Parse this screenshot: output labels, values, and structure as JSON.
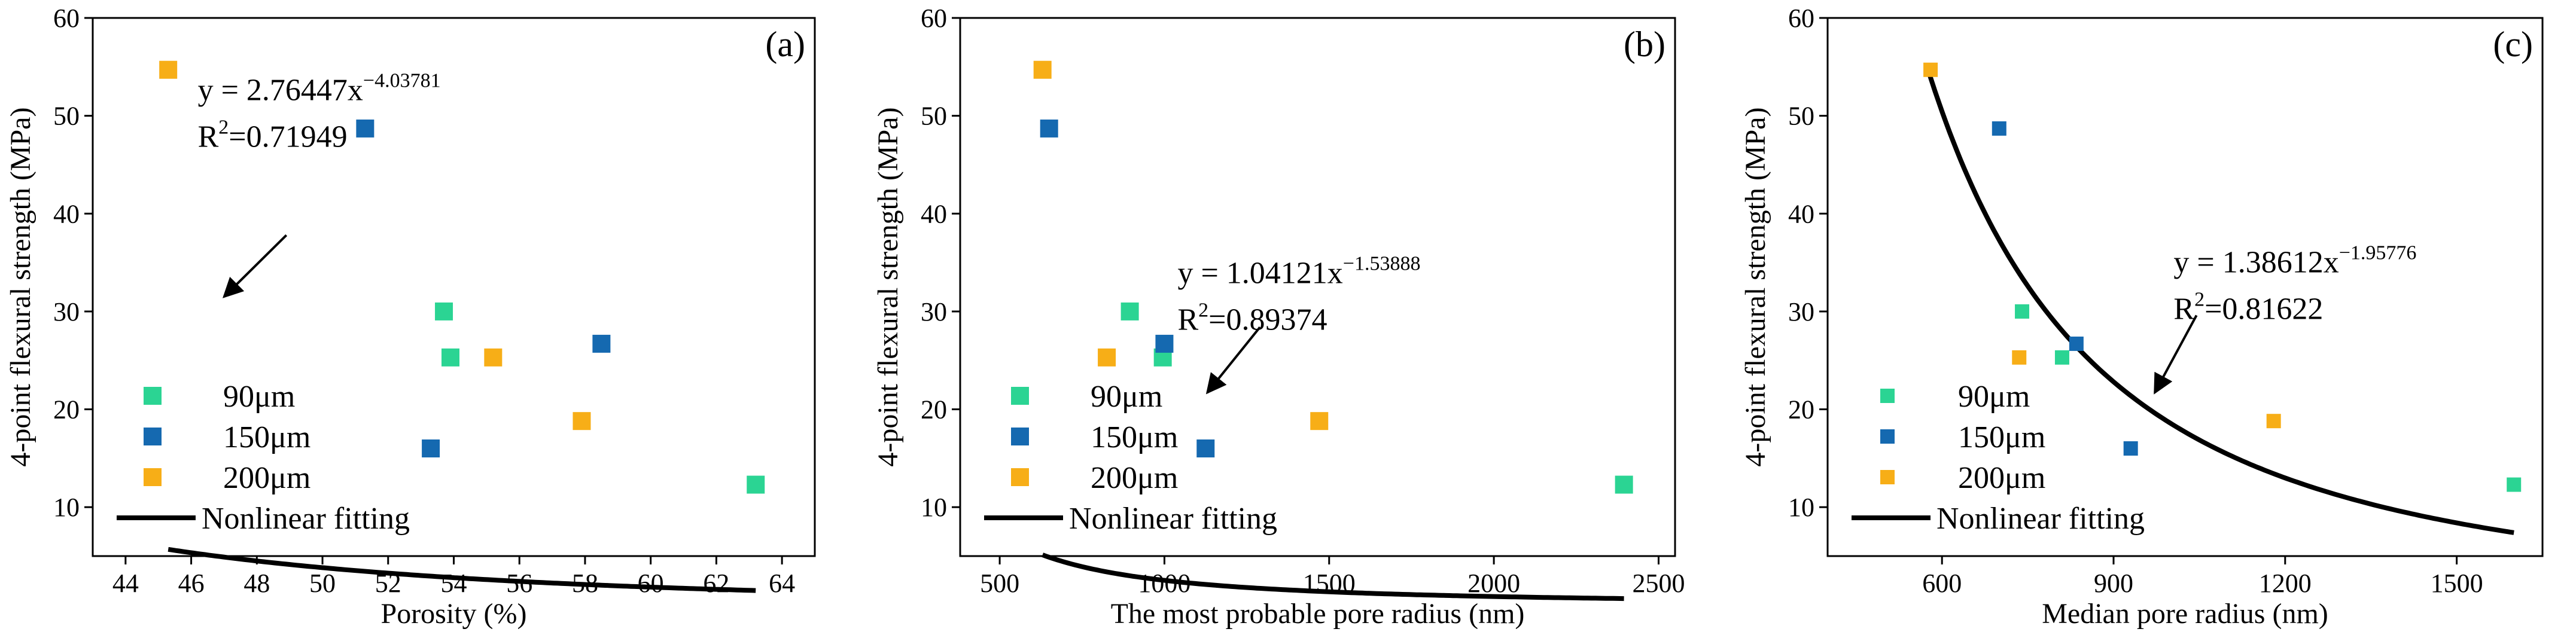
{
  "colors": {
    "s90": "#2bd493",
    "s150": "#1569b0",
    "s200": "#f7ae17",
    "fit": "#000000",
    "axis": "#000000"
  },
  "chart_data": [
    {
      "type": "scatter",
      "panel_label": "(a)",
      "xlabel": "Porosity (%)",
      "ylabel": "4-point flexural strength (MPa)",
      "xlim": [
        43,
        65
      ],
      "ylim": [
        5,
        60
      ],
      "xticks": [
        44,
        46,
        48,
        50,
        52,
        54,
        56,
        58,
        60,
        62,
        64
      ],
      "yticks": [
        10,
        20,
        30,
        40,
        50,
        60
      ],
      "series": [
        {
          "name": "90μm",
          "color_key": "s90",
          "marker_scale": 1.0,
          "points": [
            [
              53.7,
              30.0
            ],
            [
              53.9,
              25.3
            ],
            [
              63.2,
              12.3
            ]
          ]
        },
        {
          "name": "150μm",
          "color_key": "s150",
          "marker_scale": 1.0,
          "points": [
            [
              51.3,
              48.7
            ],
            [
              58.5,
              26.7
            ],
            [
              53.3,
              16.0
            ]
          ]
        },
        {
          "name": "200μm",
          "color_key": "s200",
          "marker_scale": 1.0,
          "points": [
            [
              45.3,
              54.7
            ],
            [
              55.2,
              25.3
            ],
            [
              57.9,
              18.8
            ]
          ]
        }
      ],
      "fit": {
        "name": "Nonlinear fitting",
        "a": 27644700.0,
        "b": -4.03781,
        "x_range": [
          45.3,
          63.2
        ]
      },
      "equation": {
        "prefix": "y = 2.76447x",
        "exponent": "−4.03781",
        "r2_prefix": "R",
        "r2_exp": "2",
        "r2_value": "=0.71949"
      },
      "annotation": {
        "text_pos": [
          46.2,
          51.6
        ],
        "arrow_from": [
          48.9,
          37.8
        ],
        "arrow_to": [
          47.0,
          31.5
        ]
      },
      "legend_position": "bottom-left"
    },
    {
      "type": "scatter",
      "panel_label": "(b)",
      "xlabel": "The most probable pore radius (nm)",
      "ylabel": "4-point flexural strength (MPa)",
      "xlim": [
        380,
        2550
      ],
      "ylim": [
        5,
        60
      ],
      "xticks": [
        500,
        1000,
        1500,
        2000,
        2500
      ],
      "yticks": [
        10,
        20,
        30,
        40,
        50,
        60
      ],
      "series": [
        {
          "name": "90μm",
          "color_key": "s90",
          "marker_scale": 1.0,
          "points": [
            [
              895,
              30.0
            ],
            [
              995,
              25.3
            ],
            [
              2395,
              12.3
            ]
          ]
        },
        {
          "name": "150μm",
          "color_key": "s150",
          "marker_scale": 1.0,
          "points": [
            [
              650,
              48.7
            ],
            [
              1000,
              26.7
            ],
            [
              1125,
              16.0
            ]
          ]
        },
        {
          "name": "200μm",
          "color_key": "s200",
          "marker_scale": 1.0,
          "points": [
            [
              630,
              54.7
            ],
            [
              825,
              25.3
            ],
            [
              1470,
              18.8
            ]
          ]
        }
      ],
      "fit": {
        "name": "Nonlinear fitting",
        "a": 104121.0,
        "b": -1.53888,
        "x_range": [
          630,
          2395
        ]
      },
      "equation": {
        "prefix": "y = 1.04121x",
        "exponent": "−1.53888",
        "r2_prefix": "R",
        "r2_exp": "2",
        "r2_value": "=0.89374"
      },
      "annotation": {
        "text_pos": [
          1040,
          32.9
        ],
        "arrow_from": [
          1290,
          28.4
        ],
        "arrow_to": [
          1130,
          21.7
        ]
      },
      "legend_position": "bottom-left"
    },
    {
      "type": "scatter",
      "panel_label": "(c)",
      "xlabel": "Median pore radius (nm)",
      "ylabel": "4-point flexural strength (MPa)",
      "xlim": [
        400,
        1650
      ],
      "ylim": [
        5,
        60
      ],
      "xticks": [
        600,
        900,
        1200,
        1500
      ],
      "yticks": [
        10,
        20,
        30,
        40,
        50,
        60
      ],
      "series": [
        {
          "name": "90μm",
          "color_key": "s90",
          "marker_scale": 0.8,
          "points": [
            [
              740,
              30.0
            ],
            [
              810,
              25.3
            ],
            [
              1600,
              12.3
            ]
          ]
        },
        {
          "name": "150μm",
          "color_key": "s150",
          "marker_scale": 0.8,
          "points": [
            [
              700,
              48.7
            ],
            [
              835,
              26.7
            ],
            [
              930,
              16.0
            ]
          ]
        },
        {
          "name": "200μm",
          "color_key": "s200",
          "marker_scale": 0.8,
          "points": [
            [
              580,
              54.7
            ],
            [
              735,
              25.3
            ],
            [
              1180,
              18.8
            ]
          ]
        }
      ],
      "fit": {
        "name": "Nonlinear fitting",
        "a": 13861200.0,
        "b": -1.95776,
        "x_range": [
          575,
          1600
        ]
      },
      "equation": {
        "prefix": "y = 1.38612x",
        "exponent": "−1.95776",
        "r2_prefix": "R",
        "r2_exp": "2",
        "r2_value": "=0.81622"
      },
      "annotation": {
        "text_pos": [
          1005,
          34.0
        ],
        "arrow_from": [
          1045,
          29.6
        ],
        "arrow_to": [
          972,
          21.7
        ]
      },
      "legend_position": "bottom-left"
    }
  ]
}
